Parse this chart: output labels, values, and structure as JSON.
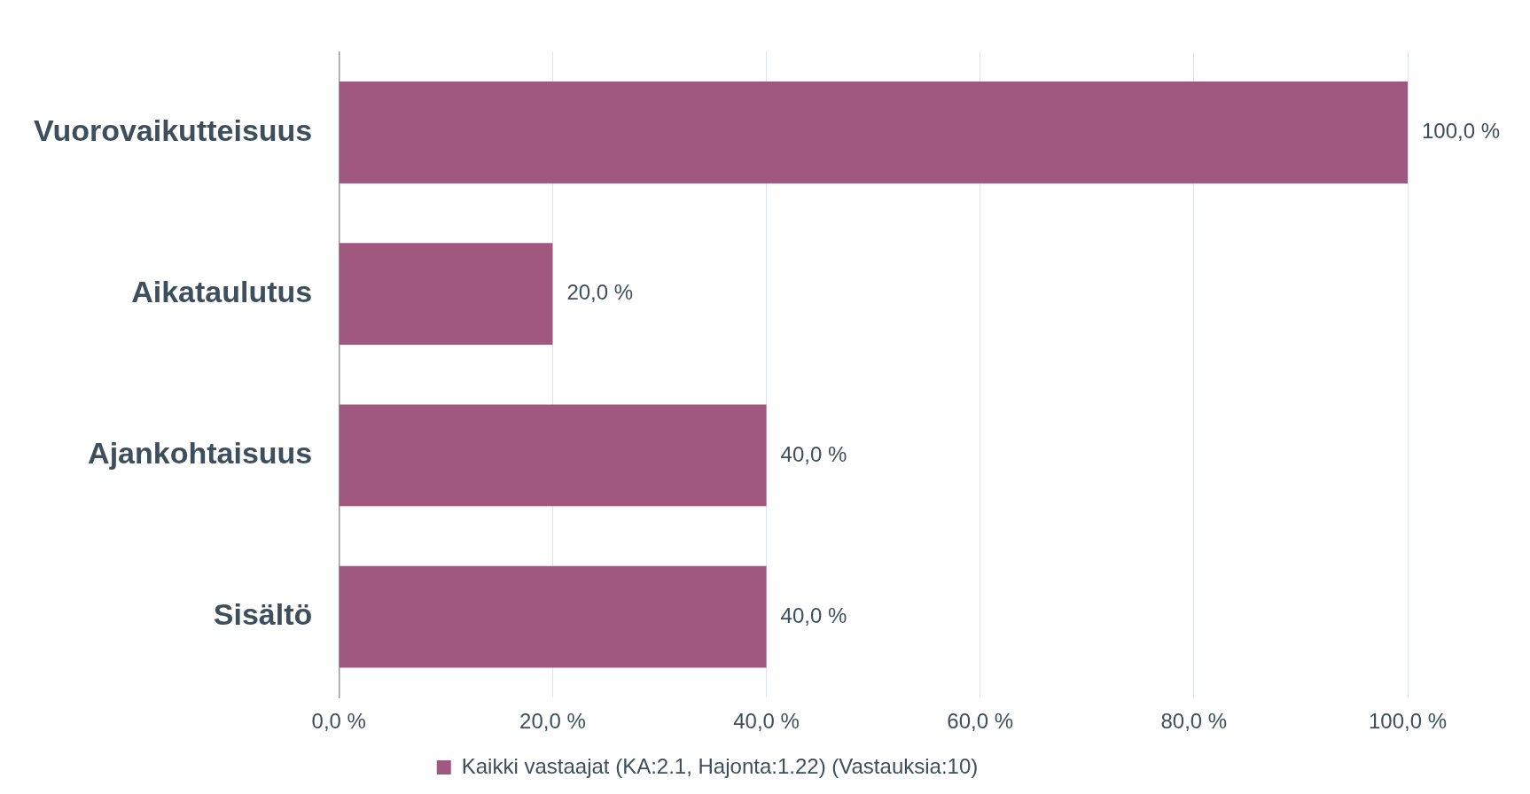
{
  "chart_data": {
    "type": "bar",
    "orientation": "horizontal",
    "categories": [
      "Vuorovaikutteisuus",
      "Aikataulutus",
      "Ajankohtaisuus",
      "Sisältö"
    ],
    "series": [
      {
        "name": "Kaikki vastaajat (KA:2.1, Hajonta:1.22) (Vastauksia:10)",
        "color": "#a0587f",
        "values": [
          100,
          20,
          40,
          40
        ],
        "value_labels": [
          "100,0 %",
          "20,0 %",
          "40,0 %",
          "40,0 %"
        ]
      }
    ],
    "xlim": [
      0,
      100
    ],
    "xticks": [
      {
        "value": 0,
        "label": "0,0 %"
      },
      {
        "value": 20,
        "label": "20,0 %"
      },
      {
        "value": 40,
        "label": "40,0 %"
      },
      {
        "value": 60,
        "label": "60,0 %"
      },
      {
        "value": 80,
        "label": "80,0 %"
      },
      {
        "value": 100,
        "label": "100,0 %"
      }
    ],
    "grid": "x",
    "legend": "bottom"
  }
}
